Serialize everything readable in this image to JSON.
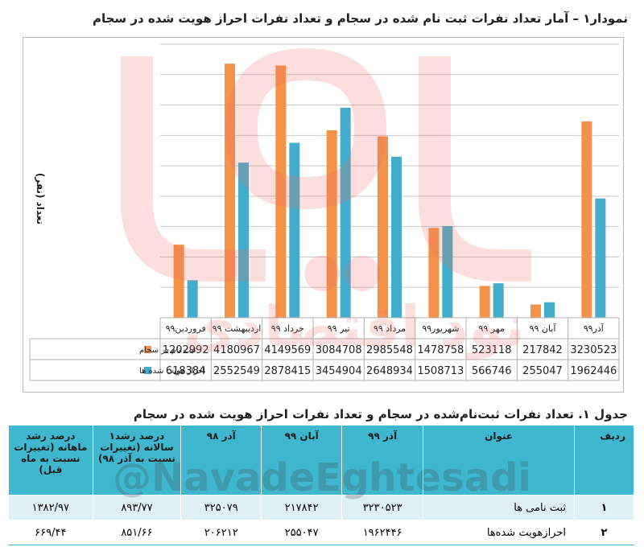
{
  "chart_data": {
    "type": "bar",
    "title": "نمودار۱ – آمار تعداد نفرات ثبت نام شده در سجام و تعداد نفرات احراز هویت شده در سجام",
    "ylabel": "تعداد (نفر)",
    "categories": [
      "آذر۹۹",
      "آبان ۹۹",
      "مهر ۹۹",
      "شهریور۹۹",
      "مرداد ۹۹",
      "تیر ۹۹",
      "خرداد ۹۹",
      "اردیبهشت ۹۹",
      "فروردین۹۹"
    ],
    "series": [
      {
        "name": "ثبت نام در سجام",
        "color": "#f4924a",
        "values": [
          3230523,
          217842,
          523118,
          1478758,
          2985548,
          3084708,
          4149569,
          4180967,
          1202992
        ]
      },
      {
        "name": "احراز هویت شده ها",
        "color": "#43aecb",
        "values": [
          1962446,
          255047,
          566746,
          1508713,
          2648934,
          3454904,
          2878415,
          2552549,
          618384
        ]
      }
    ],
    "ylim": [
      0,
      4500000
    ],
    "grid": true,
    "legend": "table-left"
  },
  "table": {
    "title": "جدول ۱. تعداد نفرات ثبت‌نام‌شده در سجام و تعداد نفرات احراز هویت شده در سجام",
    "headers": {
      "row": "ردیف",
      "title": "عنوان",
      "azar99": "آذر ۹۹",
      "aban99": "آبان ۹۹",
      "azar98": "آذر ۹۸",
      "yearly": "درصد رشد۱ سالانه (تغییرات نسبت به آذر ۹۸)",
      "monthly": "درصد رشد ماهانه (تغییرات نسبت به ماه قبل)"
    },
    "rows": [
      {
        "num": "۱",
        "title": "ثبت نامی ها",
        "azar99": "۳۲۳۰۵۲۳",
        "aban99": "۲۱۷۸۴۲",
        "azar98": "۳۲۵۰۷۹",
        "yearly": "۸۹۳/۷۷",
        "monthly": "۱۳۸۲/۹۷"
      },
      {
        "num": "۲",
        "title": "احرازهویت شده‌ها",
        "azar99": "۱۹۶۲۴۴۶",
        "aban99": "۲۵۵۰۴۷",
        "azar98": "۲۰۶۲۱۲",
        "yearly": "۸۵۱/۶۶",
        "monthly": "۶۶۹/۴۴"
      }
    ]
  },
  "watermark": {
    "handle": "@NavadeEghtesadi",
    "brand": "نود اقتصادی",
    "color": "#f26b6b"
  }
}
